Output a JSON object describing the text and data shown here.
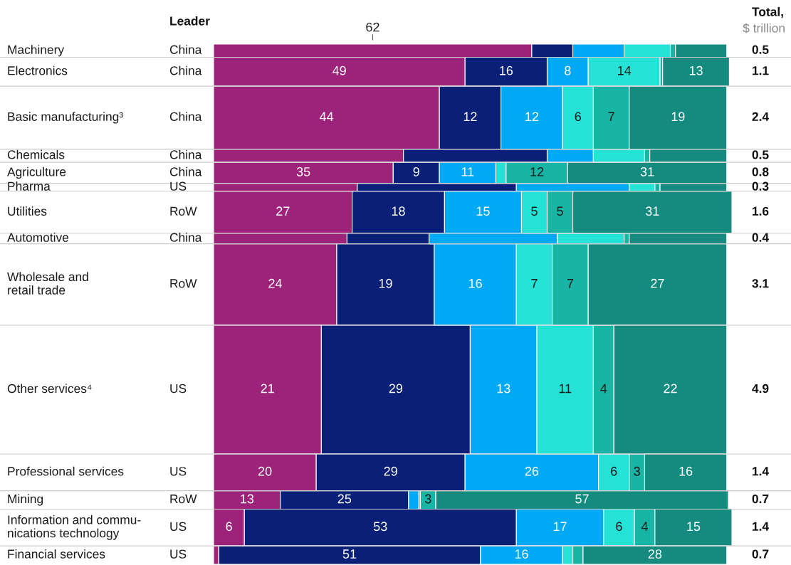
{
  "chart_data": {
    "type": "bar",
    "orientation": "horizontal",
    "stacked": true,
    "categories": [
      "Machinery",
      "Electronics",
      "Basic manufacturing³",
      "Chemicals",
      "Agriculture",
      "Pharma",
      "Utilities",
      "Automotive",
      "Wholesale and\nretail trade",
      "Other services⁴",
      "Professional services",
      "Mining",
      "Information and commu-\nnications technology",
      "Financial services"
    ],
    "series": [
      {
        "color": "#9c2379",
        "values": [
          62,
          49,
          44,
          37,
          35,
          28,
          27,
          26,
          24,
          21,
          20,
          13,
          6,
          1
        ],
        "value_labels": [
          "62",
          "49",
          "44",
          null,
          "35",
          null,
          "27",
          null,
          "24",
          "21",
          "20",
          "13",
          "6",
          null
        ]
      },
      {
        "color": "#0a1f78",
        "values": [
          8,
          16,
          12,
          28,
          9,
          31,
          18,
          16,
          19,
          29,
          29,
          25,
          53,
          51
        ],
        "value_labels": [
          null,
          "16",
          "12",
          null,
          "9",
          null,
          "18",
          null,
          "19",
          "29",
          "29",
          "25",
          "53",
          "51"
        ]
      },
      {
        "color": "#00a9f4",
        "values": [
          10,
          8,
          12,
          9,
          11,
          22,
          15,
          25,
          16,
          13,
          26,
          2,
          17,
          16
        ],
        "value_labels": [
          null,
          "8",
          "12",
          null,
          "11",
          null,
          "15",
          null,
          "16",
          "13",
          "26",
          null,
          "17",
          "16"
        ]
      },
      {
        "color": "#24e3d6",
        "values": [
          9,
          14,
          6,
          10,
          2,
          5,
          5,
          13,
          7,
          11,
          6,
          0.3,
          6,
          2
        ],
        "value_labels": [
          null,
          "14",
          "6",
          null,
          null,
          null,
          "5",
          null,
          "7",
          "11",
          "6",
          null,
          "6",
          null
        ]
      },
      {
        "color": "#18b4a4",
        "values": [
          1,
          0.5,
          7,
          1,
          12,
          1,
          5,
          1,
          7,
          4,
          3,
          3,
          4,
          2
        ],
        "value_labels": [
          null,
          null,
          "7",
          null,
          "12",
          null,
          "5",
          null,
          "7",
          "4",
          "3",
          "3",
          "4",
          null
        ]
      },
      {
        "color": "#148b7e",
        "values": [
          10,
          13,
          19,
          15,
          31,
          13,
          31,
          19,
          27,
          22,
          16,
          57,
          15,
          28
        ],
        "value_labels": [
          null,
          "13",
          "19",
          null,
          "31",
          null,
          "31",
          null,
          "27",
          "22",
          "16",
          "57",
          "15",
          "28"
        ]
      }
    ],
    "annotations": [
      "Leader",
      "Total,",
      "$ trillion",
      "China",
      "China",
      "China",
      "China",
      "China",
      "US",
      "RoW",
      "China",
      "RoW",
      "US",
      "US",
      "RoW",
      "US",
      "US",
      "0.5",
      "1.1",
      "2.4",
      "0.5",
      "0.8",
      "0.3",
      "1.6",
      "0.4",
      "3.1",
      "4.9",
      "1.4",
      "0.7",
      "1.4",
      "0.7"
    ]
  }
}
